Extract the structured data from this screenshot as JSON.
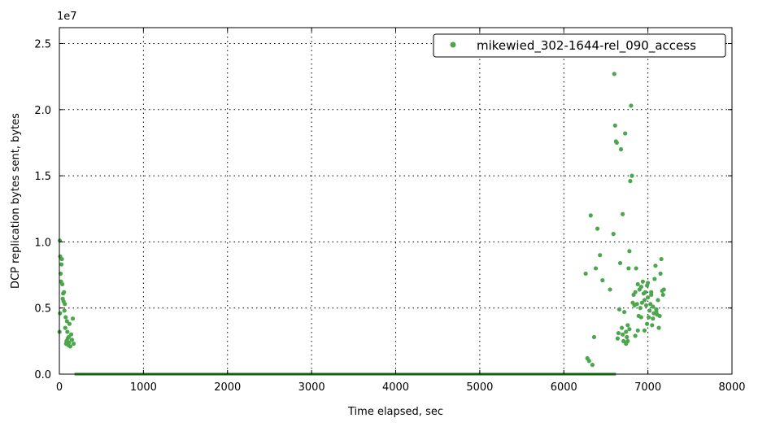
{
  "chart_data": {
    "type": "scatter",
    "xlabel": "Time elapsed, sec",
    "ylabel": "DCP replication bytes sent, bytes",
    "y_offset_label": "1e7",
    "xlim": [
      0,
      8000
    ],
    "ylim": [
      0,
      26200000
    ],
    "x_ticks": [
      0,
      1000,
      2000,
      3000,
      4000,
      5000,
      6000,
      7000,
      8000
    ],
    "x_tick_labels": [
      "0",
      "1000",
      "2000",
      "3000",
      "4000",
      "5000",
      "6000",
      "7000",
      "8000"
    ],
    "y_ticks": [
      0,
      5000000,
      10000000,
      15000000,
      20000000,
      25000000
    ],
    "y_tick_labels": [
      "0.0",
      "0.5",
      "1.0",
      "1.5",
      "2.0",
      "2.5"
    ],
    "grid": true,
    "legend_position": "top-right",
    "series": [
      {
        "name": "mikewied_302-1644-rel_090_access",
        "color": "#4ca64c",
        "zero_baseline_x_range": [
          180,
          6620
        ],
        "points": [
          [
            5,
            10100000
          ],
          [
            10,
            8900000
          ],
          [
            15,
            7600000
          ],
          [
            20,
            7000000
          ],
          [
            25,
            8300000
          ],
          [
            30,
            8700000
          ],
          [
            35,
            6800000
          ],
          [
            40,
            5700000
          ],
          [
            45,
            6100000
          ],
          [
            50,
            5500000
          ],
          [
            55,
            6200000
          ],
          [
            60,
            4800000
          ],
          [
            65,
            5300000
          ],
          [
            70,
            3500000
          ],
          [
            75,
            4300000
          ],
          [
            80,
            2300000
          ],
          [
            85,
            2500000
          ],
          [
            90,
            4000000
          ],
          [
            95,
            3200000
          ],
          [
            100,
            2700000
          ],
          [
            105,
            2200000
          ],
          [
            110,
            2800000
          ],
          [
            115,
            2400000
          ],
          [
            120,
            3800000
          ],
          [
            130,
            2100000
          ],
          [
            140,
            3000000
          ],
          [
            150,
            2600000
          ],
          [
            160,
            4200000
          ],
          [
            170,
            2300000
          ],
          [
            2,
            3200000
          ],
          [
            8,
            4600000
          ],
          [
            6260,
            7600000
          ],
          [
            6280,
            1200000
          ],
          [
            6300,
            1000000
          ],
          [
            6320,
            12000000
          ],
          [
            6340,
            700000
          ],
          [
            6360,
            2800000
          ],
          [
            6380,
            8000000
          ],
          [
            6400,
            11000000
          ],
          [
            6430,
            9000000
          ],
          [
            6460,
            7100000
          ],
          [
            6550,
            6400000
          ],
          [
            6590,
            10600000
          ],
          [
            6600,
            22700000
          ],
          [
            6610,
            18800000
          ],
          [
            6620,
            17600000
          ],
          [
            6630,
            17500000
          ],
          [
            6640,
            2700000
          ],
          [
            6650,
            3100000
          ],
          [
            6660,
            4900000
          ],
          [
            6670,
            8400000
          ],
          [
            6680,
            17000000
          ],
          [
            6690,
            3500000
          ],
          [
            6700,
            12100000
          ],
          [
            6710,
            2500000
          ],
          [
            6720,
            4700000
          ],
          [
            6730,
            18200000
          ],
          [
            6740,
            3200000
          ],
          [
            6750,
            2800000
          ],
          [
            6760,
            3700000
          ],
          [
            6770,
            8000000
          ],
          [
            6780,
            9300000
          ],
          [
            6790,
            14600000
          ],
          [
            6800,
            20300000
          ],
          [
            6810,
            15000000
          ],
          [
            6820,
            5400000
          ],
          [
            6830,
            6000000
          ],
          [
            6840,
            5200000
          ],
          [
            6850,
            6200000
          ],
          [
            6860,
            8000000
          ],
          [
            6870,
            5300000
          ],
          [
            6880,
            6800000
          ],
          [
            6890,
            4400000
          ],
          [
            6900,
            6400000
          ],
          [
            6910,
            5000000
          ],
          [
            6920,
            6600000
          ],
          [
            6930,
            5400000
          ],
          [
            6940,
            7000000
          ],
          [
            6950,
            6100000
          ],
          [
            6960,
            5600000
          ],
          [
            6970,
            6200000
          ],
          [
            6980,
            5200000
          ],
          [
            6990,
            6700000
          ],
          [
            7000,
            5800000
          ],
          [
            7010,
            4300000
          ],
          [
            7020,
            4800000
          ],
          [
            7030,
            5300000
          ],
          [
            7040,
            6000000
          ],
          [
            7050,
            3700000
          ],
          [
            7060,
            5100000
          ],
          [
            7070,
            4600000
          ],
          [
            7080,
            7200000
          ],
          [
            7090,
            8200000
          ],
          [
            7100,
            4900000
          ],
          [
            7110,
            4500000
          ],
          [
            7120,
            5600000
          ],
          [
            7130,
            3500000
          ],
          [
            7140,
            4400000
          ],
          [
            7150,
            7600000
          ],
          [
            7160,
            8700000
          ],
          [
            7170,
            6300000
          ],
          [
            7180,
            6000000
          ],
          [
            7190,
            6400000
          ],
          [
            6920,
            4300000
          ],
          [
            6960,
            3300000
          ],
          [
            6990,
            3800000
          ],
          [
            6700,
            3000000
          ],
          [
            6740,
            2300000
          ],
          [
            6760,
            2500000
          ],
          [
            6780,
            3400000
          ],
          [
            6850,
            2900000
          ],
          [
            6880,
            3300000
          ],
          [
            7000,
            6900000
          ],
          [
            7040,
            6200000
          ],
          [
            7100,
            4700000
          ],
          [
            7060,
            4200000
          ]
        ]
      }
    ]
  }
}
